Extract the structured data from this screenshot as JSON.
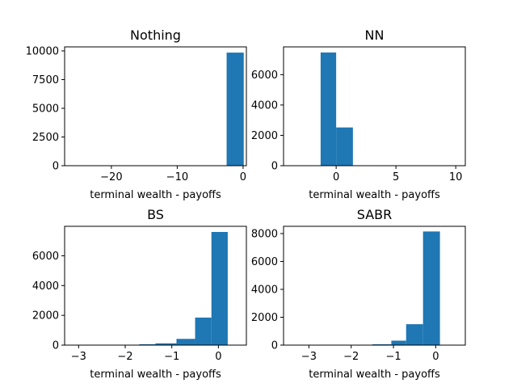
{
  "chart_data": [
    {
      "type": "bar",
      "title": "Nothing",
      "xlabel": "terminal wealth - payoffs",
      "ylabel": "",
      "xlim": [
        -27.1,
        0.5
      ],
      "ylim": [
        0,
        10350
      ],
      "xticks": [
        -20,
        -10,
        0
      ],
      "yticks": [
        0,
        2500,
        5000,
        7500,
        10000
      ],
      "bins": [
        {
          "x0": -25.9,
          "x1": -23.3,
          "count": 0
        },
        {
          "x0": -23.3,
          "x1": -20.7,
          "count": 0
        },
        {
          "x0": -20.7,
          "x1": -18.1,
          "count": 0
        },
        {
          "x0": -18.1,
          "x1": -15.5,
          "count": 0
        },
        {
          "x0": -15.5,
          "x1": -12.9,
          "count": 0
        },
        {
          "x0": -12.9,
          "x1": -10.3,
          "count": 0
        },
        {
          "x0": -10.3,
          "x1": -7.7,
          "count": 0
        },
        {
          "x0": -7.7,
          "x1": -5.1,
          "count": 0
        },
        {
          "x0": -5.1,
          "x1": -2.5,
          "count": 0
        },
        {
          "x0": -2.5,
          "x1": 0.1,
          "count": 9850
        }
      ]
    },
    {
      "type": "bar",
      "title": "NN",
      "xlabel": "terminal wealth - payoffs",
      "ylabel": "",
      "xlim": [
        -4.4,
        10.8
      ],
      "ylim": [
        0,
        7830
      ],
      "xticks": [
        0,
        5,
        10
      ],
      "yticks": [
        0,
        2000,
        4000,
        6000
      ],
      "bins": [
        {
          "x0": -3.7,
          "x1": -1.3,
          "count": 0
        },
        {
          "x0": -1.3,
          "x1": 0.0,
          "count": 7460
        },
        {
          "x0": 0.0,
          "x1": 1.4,
          "count": 2520
        },
        {
          "x0": 1.4,
          "x1": 2.8,
          "count": 0
        },
        {
          "x0": 2.8,
          "x1": 4.2,
          "count": 0
        },
        {
          "x0": 4.2,
          "x1": 5.6,
          "count": 0
        },
        {
          "x0": 5.6,
          "x1": 7.0,
          "count": 0
        },
        {
          "x0": 7.0,
          "x1": 8.4,
          "count": 0
        },
        {
          "x0": 8.4,
          "x1": 10.0,
          "count": 0
        }
      ]
    },
    {
      "type": "bar",
      "title": "BS",
      "xlabel": "terminal wealth - payoffs",
      "ylabel": "",
      "xlim": [
        -3.3,
        0.6
      ],
      "ylim": [
        0,
        7980
      ],
      "xticks": [
        -3,
        -2,
        -1,
        0
      ],
      "yticks": [
        0,
        2000,
        4000,
        6000
      ],
      "bins": [
        {
          "x0": -3.1,
          "x1": -2.75,
          "count": 5
        },
        {
          "x0": -2.75,
          "x1": -2.4,
          "count": 5
        },
        {
          "x0": -2.4,
          "x1": -2.05,
          "count": 10
        },
        {
          "x0": -2.05,
          "x1": -1.7,
          "count": 20
        },
        {
          "x0": -1.7,
          "x1": -1.35,
          "count": 60
        },
        {
          "x0": -1.35,
          "x1": -0.9,
          "count": 120
        },
        {
          "x0": -0.9,
          "x1": -0.5,
          "count": 420
        },
        {
          "x0": -0.5,
          "x1": -0.15,
          "count": 1850
        },
        {
          "x0": -0.15,
          "x1": 0.2,
          "count": 7600
        }
      ]
    },
    {
      "type": "bar",
      "title": "SABR",
      "xlabel": "terminal wealth - payoffs",
      "ylabel": "",
      "xlim": [
        -3.6,
        0.7
      ],
      "ylim": [
        0,
        8520
      ],
      "xticks": [
        -3,
        -2,
        -1,
        0
      ],
      "yticks": [
        0,
        2000,
        4000,
        6000,
        8000
      ],
      "bins": [
        {
          "x0": -3.4,
          "x1": -3.0,
          "count": 5
        },
        {
          "x0": -3.0,
          "x1": -2.6,
          "count": 5
        },
        {
          "x0": -2.6,
          "x1": -2.2,
          "count": 5
        },
        {
          "x0": -2.2,
          "x1": -1.85,
          "count": 10
        },
        {
          "x0": -1.85,
          "x1": -1.5,
          "count": 20
        },
        {
          "x0": -1.5,
          "x1": -1.05,
          "count": 60
        },
        {
          "x0": -1.05,
          "x1": -0.7,
          "count": 320
        },
        {
          "x0": -0.7,
          "x1": -0.3,
          "count": 1500
        },
        {
          "x0": -0.3,
          "x1": 0.1,
          "count": 8150
        }
      ]
    }
  ]
}
